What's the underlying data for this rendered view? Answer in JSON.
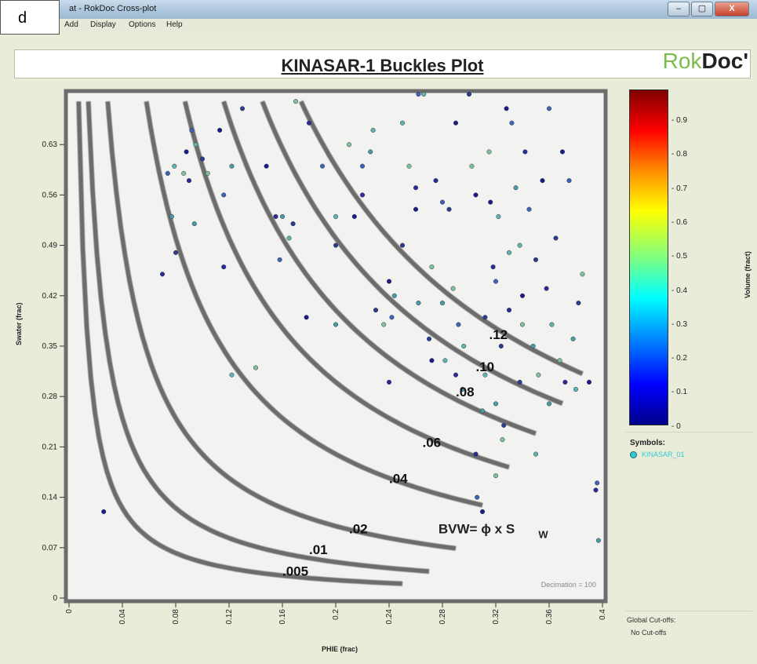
{
  "window": {
    "title": "at - RokDoc Cross-plot",
    "buttons": [
      "–",
      "▢",
      "X"
    ]
  },
  "panel_label": "d",
  "menu": [
    "Add",
    "Display",
    "Options",
    "Help"
  ],
  "plot": {
    "title": "KINASAR-1 Buckles Plot",
    "brand_light": "Rok",
    "brand_bold": "Doc'",
    "decimation": "Decimation = 100",
    "formula": "BVW= ϕ x  S",
    "formula_sub": "W"
  },
  "colorbar": {
    "label": "Volume  (fract)",
    "ticks": [
      "0.9",
      "0.8",
      "0.7",
      "0.6",
      "0.5",
      "0.4",
      "0.3",
      "0.2",
      "0.1",
      "0"
    ]
  },
  "legend": {
    "title": "Symbols:",
    "item": "KINASAR_01"
  },
  "cutoffs": {
    "title": "Global Cut-offs:",
    "value": "No Cut-offs"
  },
  "chart_data": {
    "type": "scatter",
    "xlabel": "PHIE (frac)",
    "ylabel": "Swater (frac)",
    "xlim": [
      0,
      0.4
    ],
    "ylim": [
      0,
      0.7
    ],
    "xticks": [
      "0",
      "0.04",
      "0.08",
      "0.12",
      "0.16",
      "0.2",
      "0.24",
      "0.28",
      "0.32",
      "0.36",
      "0.4"
    ],
    "yticks": [
      "0",
      "0.07",
      "0.14",
      "0.21",
      "0.28",
      "0.35",
      "0.42",
      "0.49",
      "0.56",
      "0.63"
    ],
    "bvw_curves": [
      {
        "label": ".005",
        "value": 0.005
      },
      {
        "label": ".01",
        "value": 0.01
      },
      {
        "label": ".02",
        "value": 0.02
      },
      {
        "label": ".04",
        "value": 0.04
      },
      {
        "label": ".06",
        "value": 0.06
      },
      {
        "label": ".08",
        "value": 0.08
      },
      {
        "label": ".10",
        "value": 0.1
      },
      {
        "label": ".12",
        "value": 0.12
      }
    ],
    "points": [
      [
        0.026,
        0.12
      ],
      [
        0.07,
        0.45
      ],
      [
        0.074,
        0.59
      ],
      [
        0.077,
        0.53
      ],
      [
        0.079,
        0.6
      ],
      [
        0.08,
        0.48
      ],
      [
        0.086,
        0.59
      ],
      [
        0.088,
        0.62
      ],
      [
        0.09,
        0.58
      ],
      [
        0.092,
        0.65
      ],
      [
        0.094,
        0.52
      ],
      [
        0.095,
        0.63
      ],
      [
        0.1,
        0.61
      ],
      [
        0.104,
        0.59
      ],
      [
        0.113,
        0.65
      ],
      [
        0.116,
        0.46
      ],
      [
        0.116,
        0.56
      ],
      [
        0.122,
        0.6
      ],
      [
        0.122,
        0.31
      ],
      [
        0.13,
        0.68
      ],
      [
        0.14,
        0.32
      ],
      [
        0.148,
        0.6
      ],
      [
        0.155,
        0.53
      ],
      [
        0.158,
        0.47
      ],
      [
        0.16,
        0.53
      ],
      [
        0.165,
        0.5
      ],
      [
        0.168,
        0.52
      ],
      [
        0.17,
        0.69
      ],
      [
        0.178,
        0.39
      ],
      [
        0.18,
        0.66
      ],
      [
        0.19,
        0.6
      ],
      [
        0.2,
        0.38
      ],
      [
        0.2,
        0.53
      ],
      [
        0.2,
        0.49
      ],
      [
        0.21,
        0.63
      ],
      [
        0.214,
        0.53
      ],
      [
        0.22,
        0.56
      ],
      [
        0.22,
        0.6
      ],
      [
        0.226,
        0.62
      ],
      [
        0.228,
        0.65
      ],
      [
        0.23,
        0.4
      ],
      [
        0.236,
        0.38
      ],
      [
        0.24,
        0.44
      ],
      [
        0.24,
        0.3
      ],
      [
        0.242,
        0.39
      ],
      [
        0.244,
        0.42
      ],
      [
        0.25,
        0.66
      ],
      [
        0.25,
        0.49
      ],
      [
        0.255,
        0.6
      ],
      [
        0.26,
        0.54
      ],
      [
        0.26,
        0.57
      ],
      [
        0.262,
        0.7
      ],
      [
        0.262,
        0.41
      ],
      [
        0.266,
        0.7
      ],
      [
        0.27,
        0.36
      ],
      [
        0.272,
        0.46
      ],
      [
        0.272,
        0.33
      ],
      [
        0.275,
        0.58
      ],
      [
        0.28,
        0.55
      ],
      [
        0.28,
        0.41
      ],
      [
        0.282,
        0.33
      ],
      [
        0.285,
        0.54
      ],
      [
        0.288,
        0.43
      ],
      [
        0.29,
        0.66
      ],
      [
        0.29,
        0.31
      ],
      [
        0.292,
        0.38
      ],
      [
        0.295,
        0.29
      ],
      [
        0.296,
        0.35
      ],
      [
        0.3,
        0.7
      ],
      [
        0.302,
        0.6
      ],
      [
        0.305,
        0.56
      ],
      [
        0.305,
        0.2
      ],
      [
        0.306,
        0.14
      ],
      [
        0.31,
        0.26
      ],
      [
        0.312,
        0.31
      ],
      [
        0.312,
        0.39
      ],
      [
        0.315,
        0.62
      ],
      [
        0.316,
        0.55
      ],
      [
        0.318,
        0.46
      ],
      [
        0.32,
        0.44
      ],
      [
        0.32,
        0.27
      ],
      [
        0.322,
        0.53
      ],
      [
        0.324,
        0.35
      ],
      [
        0.325,
        0.22
      ],
      [
        0.328,
        0.68
      ],
      [
        0.33,
        0.4
      ],
      [
        0.332,
        0.66
      ],
      [
        0.335,
        0.57
      ],
      [
        0.338,
        0.49
      ],
      [
        0.338,
        0.3
      ],
      [
        0.34,
        0.38
      ],
      [
        0.34,
        0.42
      ],
      [
        0.342,
        0.62
      ],
      [
        0.345,
        0.54
      ],
      [
        0.348,
        0.35
      ],
      [
        0.35,
        0.2
      ],
      [
        0.35,
        0.47
      ],
      [
        0.352,
        0.31
      ],
      [
        0.355,
        0.58
      ],
      [
        0.358,
        0.43
      ],
      [
        0.36,
        0.68
      ],
      [
        0.36,
        0.27
      ],
      [
        0.362,
        0.38
      ],
      [
        0.365,
        0.5
      ],
      [
        0.368,
        0.33
      ],
      [
        0.37,
        0.62
      ],
      [
        0.372,
        0.3
      ],
      [
        0.375,
        0.58
      ],
      [
        0.378,
        0.36
      ],
      [
        0.38,
        0.29
      ],
      [
        0.382,
        0.41
      ],
      [
        0.385,
        0.45
      ],
      [
        0.39,
        0.3
      ],
      [
        0.395,
        0.15
      ],
      [
        0.396,
        0.16
      ],
      [
        0.397,
        0.08
      ],
      [
        0.33,
        0.48
      ],
      [
        0.326,
        0.24
      ],
      [
        0.32,
        0.17
      ],
      [
        0.31,
        0.12
      ]
    ]
  }
}
